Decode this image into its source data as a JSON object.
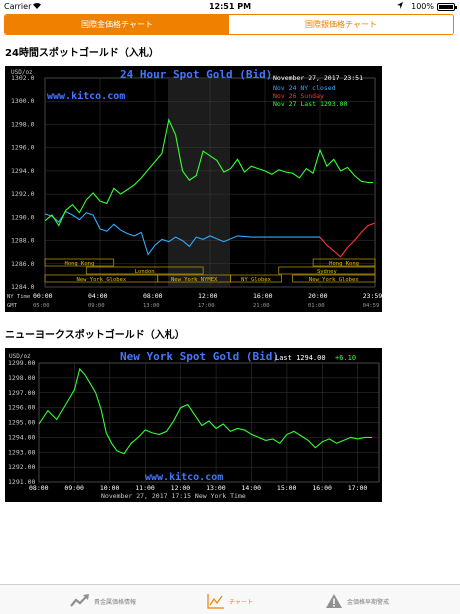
{
  "status_bar": {
    "carrier": "Carrier",
    "time": "12:51 PM",
    "battery": "100%"
  },
  "segments": [
    {
      "label": "国際金価格チャート",
      "active": true
    },
    {
      "label": "国際銀価格チャート",
      "active": false
    }
  ],
  "sections": [
    {
      "title": "24時間スポットゴールド（入札）"
    },
    {
      "title": "ニューヨークスポットゴールド（入札）"
    }
  ],
  "chart_data": [
    {
      "type": "line",
      "title": "24 Hour Spot Gold (Bid)",
      "watermark": "www.kitco.com",
      "unit_label": "USD/oz",
      "timestamp": "November 27, 2017 23:51",
      "legend": [
        {
          "name": "Nov 24 NY closed",
          "color": "#33aaff"
        },
        {
          "name": "Nov 26 Sunday",
          "color": "#ff3333"
        },
        {
          "name": "Nov 27 Last 1293.00",
          "color": "#33ff33"
        }
      ],
      "ylim": [
        1284,
        1302
      ],
      "y_ticks": [
        "1302.0",
        "1300.0",
        "1298.0",
        "1296.0",
        "1294.0",
        "1292.0",
        "1290.0",
        "1288.0",
        "1286.0",
        "1284.0"
      ],
      "x_ticks_ny": [
        "00:00",
        "04:00",
        "08:00",
        "12:00",
        "16:00",
        "20:00",
        "23:59"
      ],
      "x_ticks_gmt": [
        "05:00",
        "09:00",
        "13:00",
        "17:00",
        "21:00",
        "01:00",
        "04:59"
      ],
      "axis_row_ny": "NY Time",
      "axis_row_gmt": "GMT",
      "sessions": [
        {
          "label": "Hong Kong"
        },
        {
          "label": "London"
        },
        {
          "label": "New York Globex"
        },
        {
          "label": "New York NYMEX"
        },
        {
          "label": "NY Globex"
        },
        {
          "label": "Hong Kong"
        },
        {
          "label": "Sydney"
        },
        {
          "label": "New York Globex"
        }
      ],
      "series": [
        {
          "name": "Nov 24 NY closed",
          "color": "#33aaff",
          "x": [
            0,
            0.5,
            1,
            1.5,
            2,
            2.5,
            3,
            3.5,
            4,
            4.5,
            5,
            5.5,
            6,
            6.5,
            7,
            7.5,
            8,
            8.5,
            9,
            9.5,
            10,
            10.5,
            11,
            11.5,
            12,
            13,
            14,
            15,
            16,
            17,
            18,
            19,
            20
          ],
          "values": [
            1290.3,
            1290.1,
            1289.6,
            1290.5,
            1290.2,
            1289.8,
            1290.4,
            1290.2,
            1289.0,
            1288.8,
            1289.4,
            1288.9,
            1288.6,
            1288.4,
            1288.7,
            1286.8,
            1287.6,
            1288.1,
            1287.9,
            1288.3,
            1288.0,
            1287.5,
            1288.3,
            1288.1,
            1288.4,
            1287.9,
            1288.4,
            1288.3,
            1288.3,
            1288.3,
            1288.3,
            1288.3,
            1288.3
          ]
        },
        {
          "name": "Nov 26 Sunday",
          "color": "#ff3333",
          "x": [
            20,
            20.5,
            21,
            21.5,
            22,
            22.5,
            23,
            23.5,
            23.98
          ],
          "values": [
            1288.3,
            1287.6,
            1287.1,
            1286.6,
            1287.4,
            1288.0,
            1288.7,
            1289.3,
            1289.5
          ]
        },
        {
          "name": "Nov 27 Last 1293.00",
          "color": "#33ff33",
          "x": [
            0,
            0.5,
            1,
            1.5,
            2,
            2.5,
            3,
            3.5,
            4,
            4.5,
            5,
            5.5,
            6,
            6.5,
            7,
            7.5,
            8,
            8.5,
            9,
            9.5,
            10,
            10.5,
            11,
            11.5,
            12,
            12.5,
            13,
            13.5,
            14,
            14.5,
            15,
            15.5,
            16,
            16.5,
            17,
            17.5,
            18,
            18.5,
            19,
            19.5,
            20,
            20.5,
            21,
            21.5,
            22,
            22.5,
            23,
            23.5,
            23.85
          ],
          "values": [
            1289.7,
            1290.2,
            1289.3,
            1290.6,
            1291.1,
            1290.4,
            1291.5,
            1292.1,
            1291.4,
            1291.2,
            1292.5,
            1292.0,
            1292.4,
            1292.8,
            1293.4,
            1294.1,
            1294.8,
            1295.5,
            1298.4,
            1297.1,
            1294.0,
            1293.2,
            1293.6,
            1295.7,
            1295.3,
            1294.9,
            1293.9,
            1294.2,
            1295.0,
            1293.9,
            1294.4,
            1294.2,
            1294.0,
            1293.7,
            1294.1,
            1293.9,
            1293.8,
            1293.4,
            1294.2,
            1293.8,
            1295.8,
            1294.4,
            1295.0,
            1294.0,
            1294.3,
            1293.6,
            1293.1,
            1293.0,
            1293.0
          ]
        }
      ]
    },
    {
      "type": "line",
      "title": "New York Spot Gold (Bid)",
      "watermark": "www.kitco.com",
      "unit_label": "USD/oz",
      "last_label": "Last 1294.00",
      "change_label": "+6.10",
      "footer": "November 27, 2017 17:15 New York Time",
      "ylim": [
        1291,
        1299
      ],
      "y_ticks": [
        "1299.00",
        "1298.00",
        "1297.00",
        "1296.00",
        "1295.00",
        "1294.00",
        "1293.00",
        "1292.00",
        "1291.00"
      ],
      "x_ticks": [
        "08:00",
        "09:00",
        "10:00",
        "11:00",
        "12:00",
        "13:00",
        "14:00",
        "15:00",
        "16:00",
        "17:00"
      ],
      "series": [
        {
          "color": "#33ff33",
          "x": [
            8,
            8.25,
            8.5,
            8.75,
            9,
            9.15,
            9.3,
            9.45,
            9.6,
            9.75,
            9.9,
            10.05,
            10.2,
            10.4,
            10.6,
            10.8,
            11,
            11.2,
            11.4,
            11.6,
            11.8,
            12,
            12.2,
            12.4,
            12.6,
            12.8,
            13,
            13.2,
            13.4,
            13.6,
            13.8,
            14,
            14.2,
            14.4,
            14.6,
            14.8,
            15,
            15.2,
            15.4,
            15.6,
            15.8,
            16,
            16.2,
            16.4,
            16.6,
            16.8,
            17,
            17.2,
            17.4
          ],
          "values": [
            1294.9,
            1295.8,
            1295.2,
            1296.2,
            1297.2,
            1298.6,
            1298.2,
            1297.6,
            1297.0,
            1295.9,
            1294.3,
            1293.6,
            1293.1,
            1292.9,
            1293.6,
            1294.0,
            1294.5,
            1294.3,
            1294.2,
            1294.4,
            1295.1,
            1296.0,
            1296.2,
            1295.5,
            1294.8,
            1295.1,
            1294.6,
            1294.9,
            1294.4,
            1294.6,
            1294.5,
            1294.2,
            1294.0,
            1293.8,
            1293.9,
            1293.6,
            1294.2,
            1294.4,
            1294.1,
            1293.8,
            1293.3,
            1293.7,
            1293.9,
            1293.6,
            1293.8,
            1294.0,
            1293.9,
            1294.0,
            1294.0
          ]
        }
      ]
    }
  ],
  "tabs": [
    {
      "label": "貴金属価格情報",
      "active": false,
      "icon": "trend-icon"
    },
    {
      "label": "チャート",
      "active": true,
      "icon": "chart-icon"
    },
    {
      "label": "金価格早期警戒",
      "active": false,
      "icon": "warning-icon"
    }
  ]
}
